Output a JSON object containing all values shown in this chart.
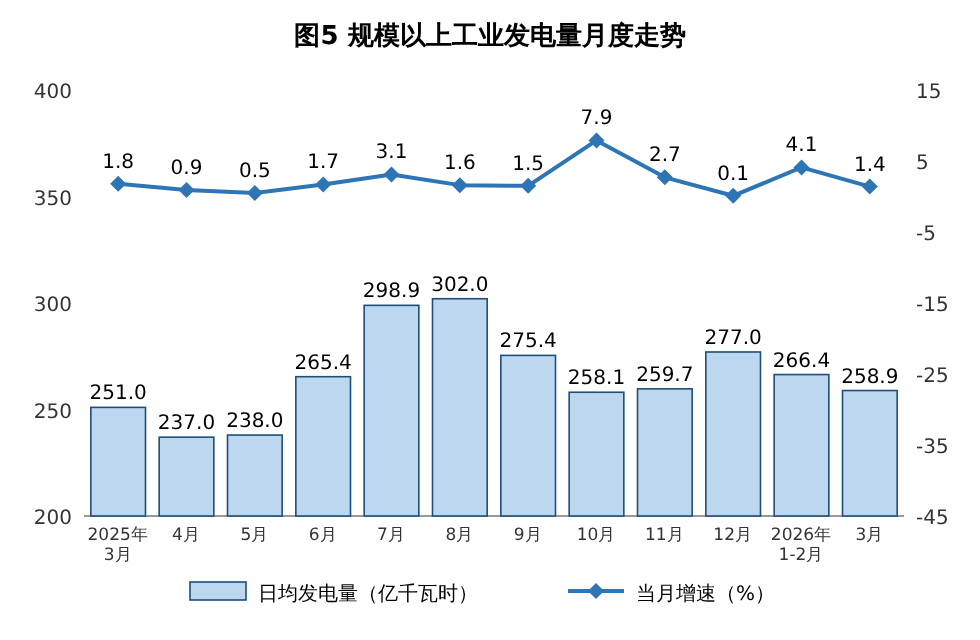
{
  "chart_data": {
    "type": "bar",
    "title": "图5  规模以上工业发电量月度走势",
    "categories": [
      "2025年\n3月",
      "4月",
      "5月",
      "6月",
      "7月",
      "8月",
      "9月",
      "10月",
      "11月",
      "12月",
      "2026年\n1-2月",
      "3月"
    ],
    "series": [
      {
        "name": "日均发电量（亿千瓦时）",
        "color": "#bdd7ee",
        "values": [
          251.0,
          237.0,
          238.0,
          265.4,
          298.9,
          302.0,
          275.4,
          258.1,
          259.7,
          277.0,
          266.4,
          258.9
        ],
        "value_labels": [
          "251.0",
          "237.0",
          "238.0",
          "265.4",
          "298.9",
          "302.0",
          "275.4",
          "258.1",
          "259.7",
          "277.0",
          "266.4",
          "258.9"
        ]
      },
      {
        "name": "当月增速（%）",
        "type": "line",
        "axis": "y2",
        "color": "#2e75b6",
        "marker": "diamond",
        "values": [
          1.8,
          0.9,
          0.5,
          1.7,
          3.1,
          1.6,
          1.5,
          7.9,
          2.7,
          0.1,
          4.1,
          1.4
        ],
        "value_labels": [
          "1.8",
          "0.9",
          "0.5",
          "1.7",
          "3.1",
          "1.6",
          "1.5",
          "7.9",
          "2.7",
          "0.1",
          "4.1",
          "1.4"
        ]
      }
    ],
    "ylim": [
      200,
      400
    ],
    "yticks": [
      200,
      250,
      300,
      350,
      400
    ],
    "y2lim": [
      -45,
      15
    ],
    "y2ticks": [
      -45,
      -35,
      -25,
      -15,
      -5,
      5,
      15
    ],
    "grid": false,
    "legend": "bottom"
  }
}
